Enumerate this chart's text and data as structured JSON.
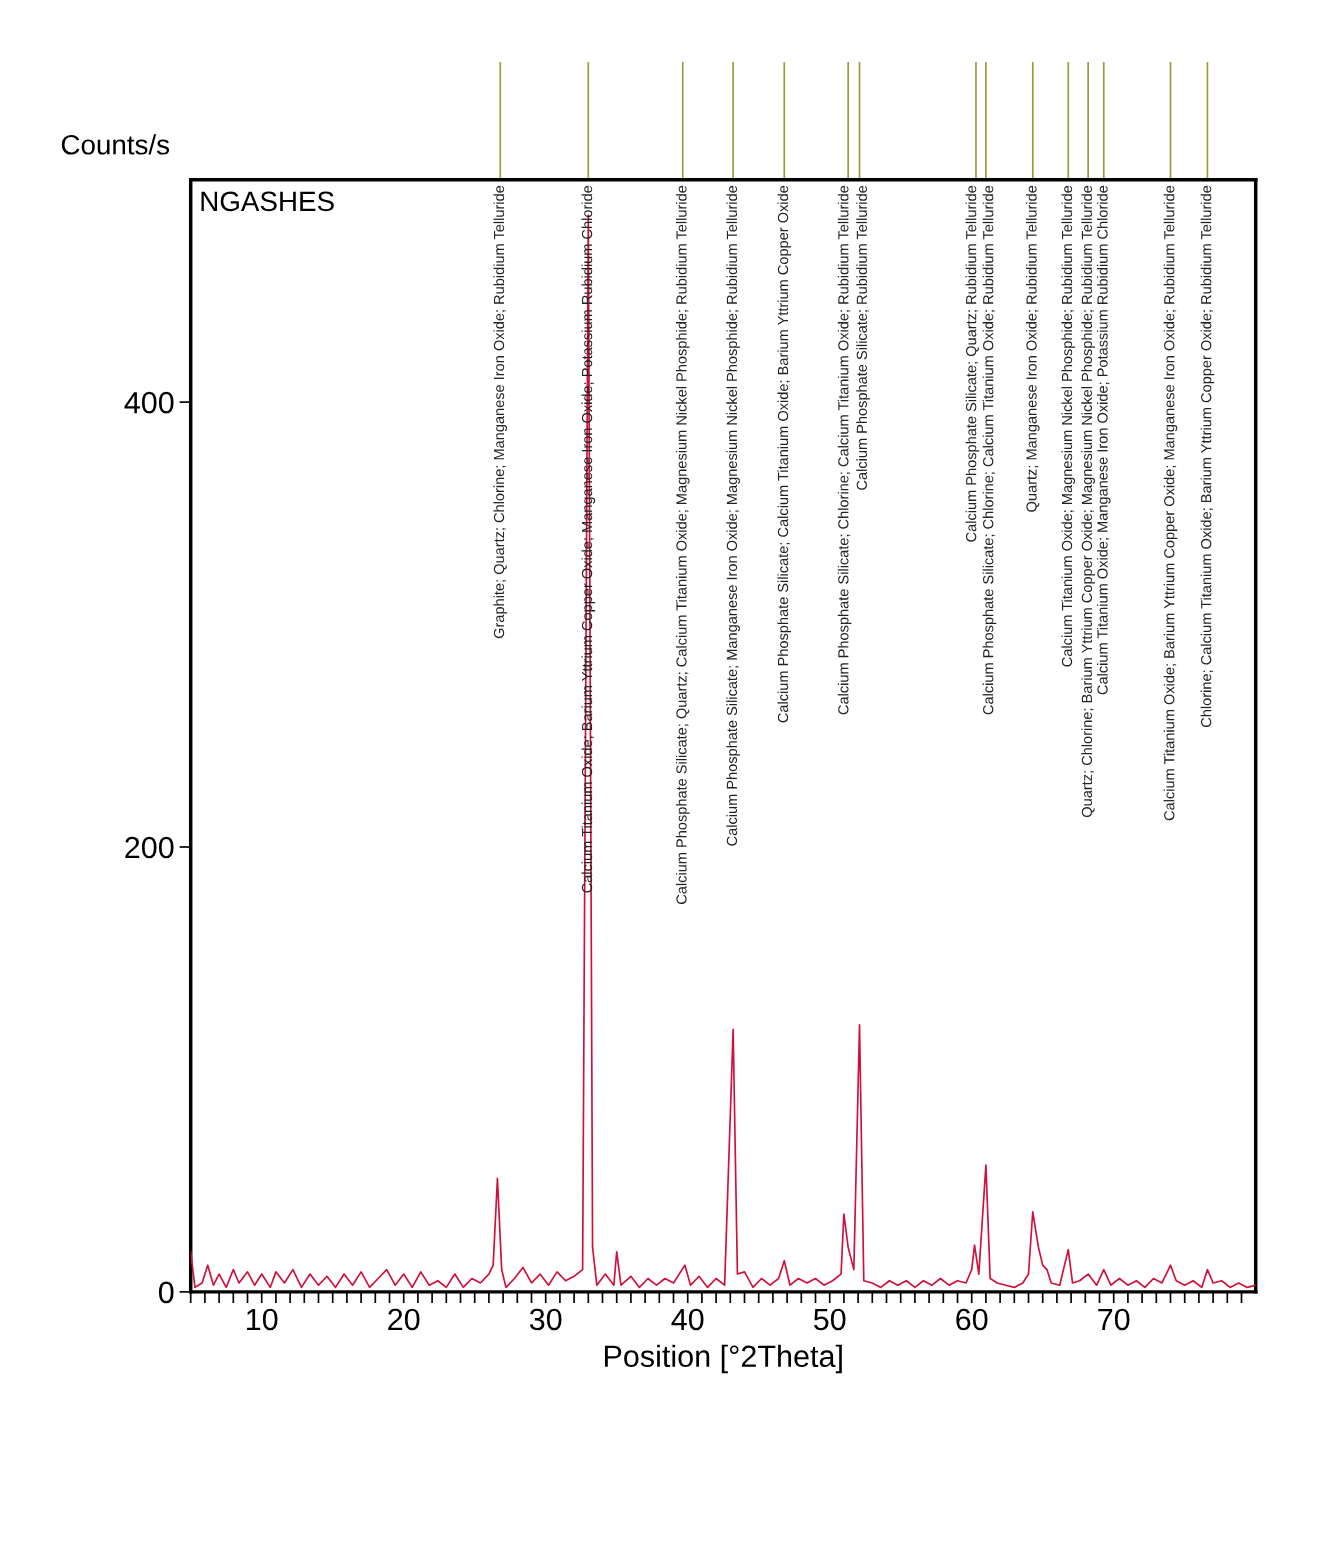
{
  "chart_data": {
    "type": "line",
    "title": "NGASHES",
    "xlabel": "Position [°2Theta]",
    "ylabel": "Counts/s",
    "x": [
      5.0,
      5.3,
      5.8,
      6.2,
      6.6,
      7.0,
      7.5,
      8.0,
      8.4,
      9.0,
      9.5,
      10.0,
      10.6,
      11.0,
      11.6,
      12.2,
      12.8,
      13.4,
      14.0,
      14.6,
      15.2,
      15.8,
      16.4,
      17.0,
      17.6,
      18.2,
      18.8,
      19.4,
      20.0,
      20.6,
      21.2,
      21.8,
      22.4,
      23.0,
      23.6,
      24.2,
      24.8,
      25.4,
      26.0,
      26.3,
      26.6,
      26.9,
      27.2,
      27.8,
      28.4,
      29.0,
      29.6,
      30.2,
      30.8,
      31.4,
      32.0,
      32.6,
      33.0,
      33.3,
      33.6,
      34.2,
      34.8,
      35.0,
      35.3,
      36.0,
      36.6,
      37.2,
      37.8,
      38.4,
      39.0,
      39.6,
      39.8,
      40.2,
      40.8,
      41.4,
      42.0,
      42.6,
      43.2,
      43.5,
      44.0,
      44.6,
      45.2,
      45.8,
      46.4,
      46.8,
      47.2,
      47.8,
      48.4,
      49.0,
      49.6,
      50.2,
      50.8,
      51.0,
      51.3,
      51.7,
      52.1,
      52.4,
      53.0,
      53.6,
      54.2,
      54.8,
      55.4,
      56.0,
      56.6,
      57.2,
      57.8,
      58.4,
      59.0,
      59.6,
      60.0,
      60.2,
      60.5,
      61.0,
      61.3,
      61.8,
      62.4,
      63.0,
      63.6,
      64.0,
      64.3,
      64.7,
      65.0,
      65.3,
      65.6,
      66.2,
      66.8,
      67.1,
      67.6,
      68.2,
      68.8,
      69.3,
      69.8,
      70.4,
      71.0,
      71.6,
      72.2,
      72.8,
      73.4,
      74.0,
      74.4,
      75.0,
      75.6,
      76.2,
      76.6,
      77.0,
      77.6,
      78.2,
      78.8,
      79.4,
      80.0
    ],
    "series": [
      {
        "color": "#d0103a",
        "values": [
          18,
          2,
          4,
          12,
          3,
          8,
          2,
          10,
          4,
          9,
          3,
          8,
          2,
          9,
          4,
          10,
          2,
          8,
          3,
          7,
          2,
          8,
          3,
          9,
          2,
          6,
          10,
          3,
          8,
          2,
          9,
          3,
          5,
          2,
          8,
          2,
          6,
          4,
          8,
          12,
          51,
          10,
          2,
          6,
          11,
          4,
          8,
          3,
          9,
          5,
          7,
          10,
          484,
          20,
          3,
          8,
          3,
          18,
          3,
          7,
          2,
          6,
          3,
          6,
          4,
          10,
          12,
          3,
          7,
          2,
          6,
          3,
          118,
          8,
          9,
          2,
          6,
          3,
          6,
          14,
          3,
          6,
          4,
          6,
          3,
          5,
          8,
          35,
          20,
          10,
          120,
          5,
          4,
          2,
          5,
          3,
          5,
          2,
          5,
          3,
          6,
          3,
          5,
          4,
          10,
          21,
          8,
          57,
          6,
          4,
          3,
          2,
          4,
          8,
          36,
          20,
          12,
          10,
          4,
          3,
          19,
          4,
          5,
          8,
          3,
          10,
          3,
          6,
          3,
          5,
          2,
          6,
          4,
          12,
          5,
          3,
          5,
          2,
          10,
          4,
          5,
          2,
          4,
          2,
          3
        ]
      }
    ],
    "xlim": [
      5,
      80
    ],
    "ylim": [
      0,
      500
    ],
    "xticks": [
      {
        "value": 5,
        "label": null
      },
      {
        "value": 6,
        "label": null
      },
      {
        "value": 7,
        "label": null
      },
      {
        "value": 8,
        "label": null
      },
      {
        "value": 9,
        "label": null
      },
      10,
      {
        "value": 11,
        "label": null
      },
      {
        "value": 12,
        "label": null
      },
      {
        "value": 13,
        "label": null
      },
      {
        "value": 14,
        "label": null
      },
      {
        "value": 15,
        "label": null
      },
      {
        "value": 16,
        "label": null
      },
      {
        "value": 17,
        "label": null
      },
      {
        "value": 18,
        "label": null
      },
      {
        "value": 19,
        "label": null
      },
      20,
      {
        "value": 21,
        "label": null
      },
      {
        "value": 22,
        "label": null
      },
      {
        "value": 23,
        "label": null
      },
      {
        "value": 24,
        "label": null
      },
      {
        "value": 25,
        "label": null
      },
      {
        "value": 26,
        "label": null
      },
      {
        "value": 27,
        "label": null
      },
      {
        "value": 28,
        "label": null
      },
      {
        "value": 29,
        "label": null
      },
      30,
      {
        "value": 31,
        "label": null
      },
      {
        "value": 32,
        "label": null
      },
      {
        "value": 33,
        "label": null
      },
      {
        "value": 34,
        "label": null
      },
      {
        "value": 35,
        "label": null
      },
      {
        "value": 36,
        "label": null
      },
      {
        "value": 37,
        "label": null
      },
      {
        "value": 38,
        "label": null
      },
      {
        "value": 39,
        "label": null
      },
      40,
      {
        "value": 41,
        "label": null
      },
      {
        "value": 42,
        "label": null
      },
      {
        "value": 43,
        "label": null
      },
      {
        "value": 44,
        "label": null
      },
      {
        "value": 45,
        "label": null
      },
      {
        "value": 46,
        "label": null
      },
      {
        "value": 47,
        "label": null
      },
      {
        "value": 48,
        "label": null
      },
      {
        "value": 49,
        "label": null
      },
      50,
      {
        "value": 51,
        "label": null
      },
      {
        "value": 52,
        "label": null
      },
      {
        "value": 53,
        "label": null
      },
      {
        "value": 54,
        "label": null
      },
      {
        "value": 55,
        "label": null
      },
      {
        "value": 56,
        "label": null
      },
      {
        "value": 57,
        "label": null
      },
      {
        "value": 58,
        "label": null
      },
      {
        "value": 59,
        "label": null
      },
      60,
      {
        "value": 61,
        "label": null
      },
      {
        "value": 62,
        "label": null
      },
      {
        "value": 63,
        "label": null
      },
      {
        "value": 64,
        "label": null
      },
      {
        "value": 65,
        "label": null
      },
      {
        "value": 66,
        "label": null
      },
      {
        "value": 67,
        "label": null
      },
      {
        "value": 68,
        "label": null
      },
      {
        "value": 69,
        "label": null
      },
      70,
      {
        "value": 71,
        "label": null
      },
      {
        "value": 72,
        "label": null
      },
      {
        "value": 73,
        "label": null
      },
      {
        "value": 74,
        "label": null
      },
      {
        "value": 75,
        "label": null
      },
      {
        "value": 76,
        "label": null
      },
      {
        "value": 77,
        "label": null
      },
      {
        "value": 78,
        "label": null
      },
      {
        "value": 79,
        "label": null
      }
    ],
    "yticks": [
      0,
      200,
      400
    ],
    "grid": false,
    "legend": false,
    "ref_lines": [
      {
        "axis": "x",
        "value": 26.8,
        "color": "#9a9a3a",
        "label": "Graphite; Quartz; Chlorine; Manganese Iron Oxide; Rubidium Telluride"
      },
      {
        "axis": "x",
        "value": 33.0,
        "color": "#9a9a3a",
        "label": "Calcium Titanium Oxide; Barium Yttrium Copper Oxide; Manganese Iron Oxide; Potassium Rubidium Chloride"
      },
      {
        "axis": "x",
        "value": 39.65,
        "color": "#9a9a3a",
        "label": "Calcium Phosphate Silicate; Quartz; Calcium Titanium Oxide; Magnesium Nickel Phosphide; Rubidium Telluride"
      },
      {
        "axis": "x",
        "value": 43.2,
        "color": "#9a9a3a",
        "label": "Calcium Phosphate Silicate; Manganese Iron Oxide; Magnesium Nickel Phosphide; Rubidium Telluride"
      },
      {
        "axis": "x",
        "value": 46.8,
        "color": "#9a9a3a",
        "label": "Calcium Phosphate Silicate; Calcium Titanium Oxide; Barium Yttrium Copper Oxide"
      },
      {
        "axis": "x",
        "value": 51.3,
        "color": "#9a9a3a",
        "label": "Calcium Phosphate Silicate; Chlorine; Calcium Titanium Oxide; Rubidium Telluride"
      },
      {
        "axis": "x",
        "value": 52.1,
        "color": "#9a9a3a",
        "label": "Calcium Phosphate Silicate; Rubidium Telluride"
      },
      {
        "axis": "x",
        "value": 60.3,
        "color": "#9a9a3a",
        "label": "Calcium Phosphate Silicate; Quartz; Rubidium Telluride"
      },
      {
        "axis": "x",
        "value": 61.0,
        "color": "#9a9a3a",
        "label": "Calcium Phosphate Silicate; Chlorine; Calcium Titanium Oxide; Rubidium Telluride"
      },
      {
        "axis": "x",
        "value": 64.3,
        "color": "#9a9a3a",
        "label": "Quartz; Manganese Iron Oxide; Rubidium Telluride"
      },
      {
        "axis": "x",
        "value": 66.8,
        "color": "#9a9a3a",
        "label": "Calcium Titanium Oxide; Magnesium Nickel Phosphide; Rubidium Telluride"
      },
      {
        "axis": "x",
        "value": 68.2,
        "color": "#9a9a3a",
        "label": "Quartz; Chlorine; Barium Yttrium Copper Oxide; Magnesium Nickel Phosphide; Rubidium Telluride"
      },
      {
        "axis": "x",
        "value": 69.3,
        "color": "#9a9a3a",
        "label": "Calcium Titanium Oxide; Manganese Iron Oxide; Potassium Rubidium Chloride"
      },
      {
        "axis": "x",
        "value": 74.0,
        "color": "#9a9a3a",
        "label": "Calcium Titanium Oxide; Barium Yttrium Copper Oxide; Manganese Iron Oxide; Rubidium Telluride"
      },
      {
        "axis": "x",
        "value": 76.6,
        "color": "#9a9a3a",
        "label": "Chlorine; Calcium Titanium Oxide; Barium Yttrium Copper Oxide; Rubidium Telluride"
      }
    ]
  }
}
